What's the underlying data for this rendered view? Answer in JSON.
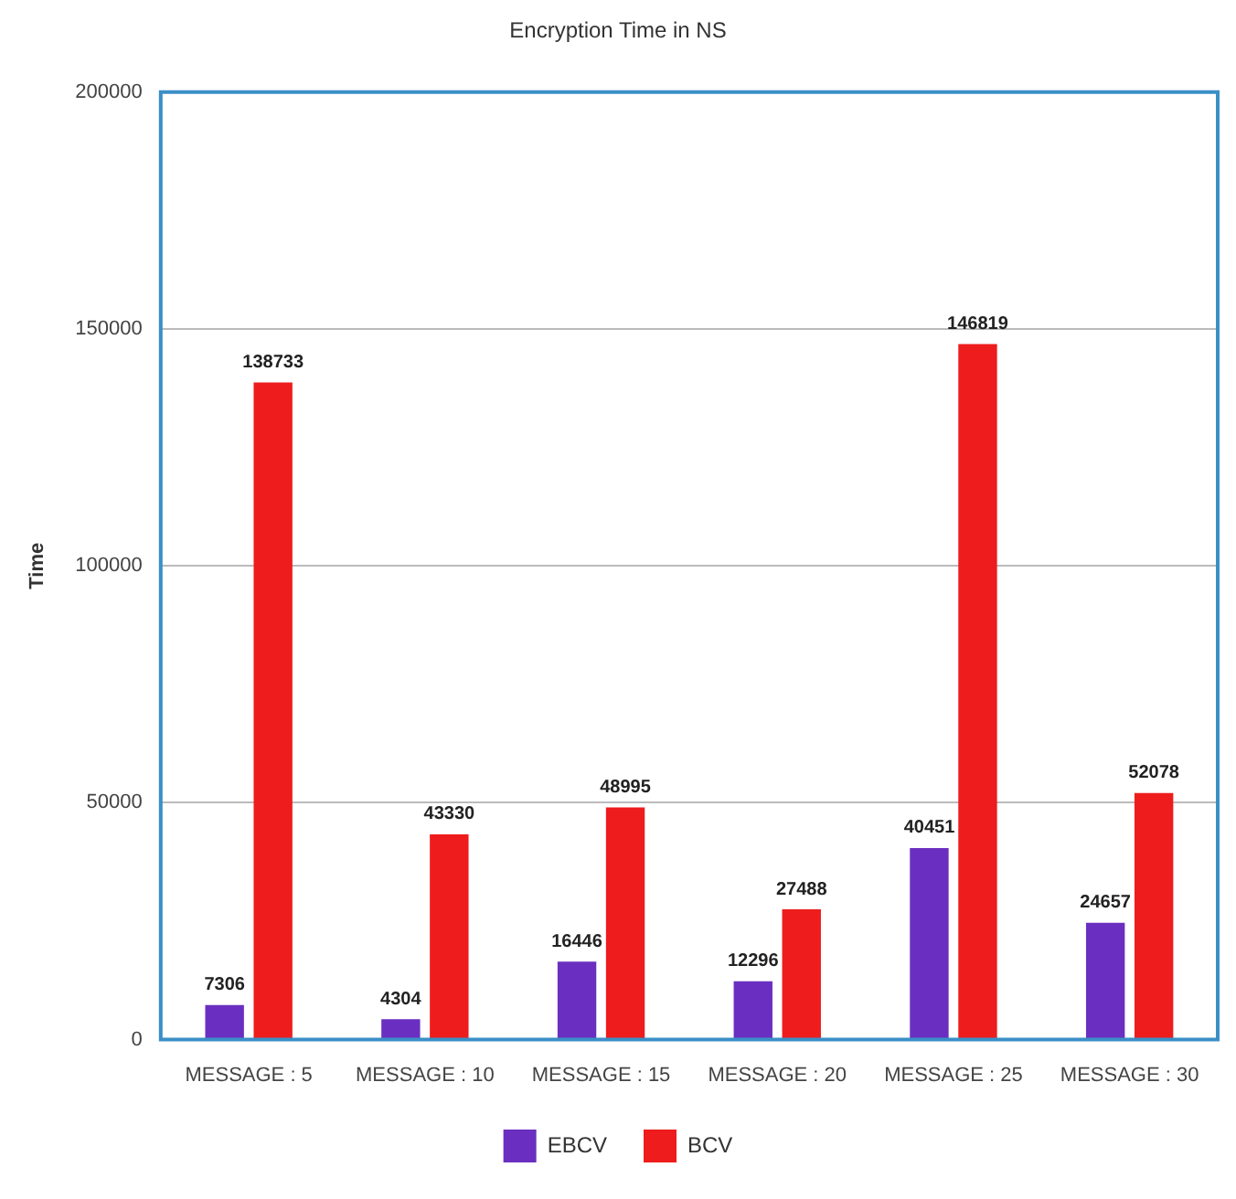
{
  "chart_data": {
    "type": "bar",
    "title": "Encryption Time in NS",
    "ylabel": "Time",
    "categories": [
      "MESSAGE : 5",
      "MESSAGE : 10",
      "MESSAGE : 15",
      "MESSAGE : 20",
      "MESSAGE : 25",
      "MESSAGE : 30"
    ],
    "series": [
      {
        "name": "EBCV",
        "color": "#6a2fc0",
        "values": [
          7306,
          4304,
          16446,
          12296,
          40451,
          24657
        ]
      },
      {
        "name": "BCV",
        "color": "#ee1c1c",
        "values": [
          138733,
          43330,
          48995,
          27488,
          146819,
          52078
        ]
      }
    ],
    "ylim": [
      0,
      200000
    ],
    "yticks": [
      0,
      50000,
      100000,
      150000,
      200000
    ],
    "grid": "y",
    "legend": "bottom",
    "data_labels": true
  }
}
